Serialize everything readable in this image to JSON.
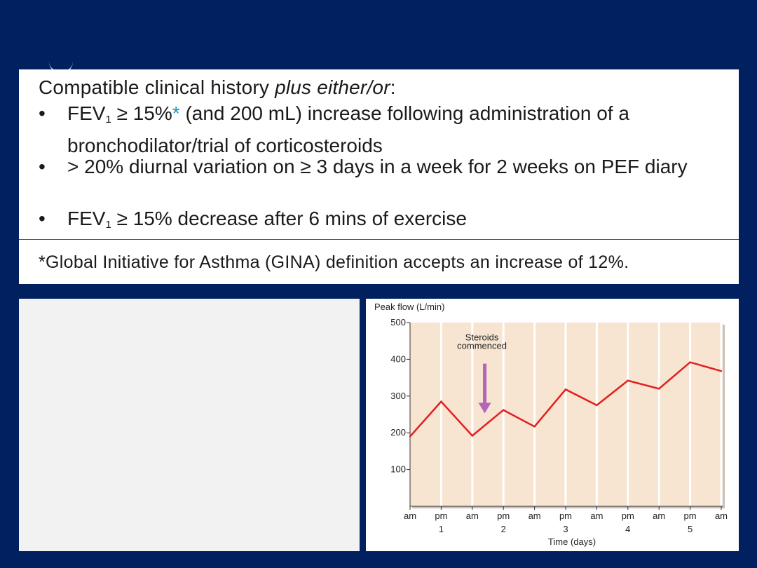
{
  "criteria": {
    "intro_prefix": "Compatible clinical history ",
    "intro_emph": "plus either/or",
    "intro_suffix": ":",
    "bullet_symbol": "•",
    "bullets": [
      {
        "lead": "FEV",
        "sub": "1",
        "text_a": " ≥ 15%",
        "star": "*",
        "text_b": " (and 200 mL) increase following administration of a bronchodilator/trial of corticosteroids"
      },
      {
        "text": "> 20% diurnal variation on ≥ 3 days in a week for 2 weeks on PEF diary"
      },
      {
        "lead": "FEV",
        "sub": "1",
        "text_a": " ≥ 15% decrease after 6 mins of exercise"
      }
    ],
    "footnote": "*Global Initiative for Asthma (GINA) definition accepts an increase of 12%."
  },
  "chart_data": {
    "type": "line",
    "ylabel": "Peak flow (L/min)",
    "xlabel": "Time (days)",
    "ylim": [
      0,
      500
    ],
    "yticks": [
      100,
      200,
      300,
      400,
      500
    ],
    "x_labels": [
      "am",
      "pm",
      "am",
      "pm",
      "am",
      "pm",
      "am",
      "pm",
      "am",
      "pm",
      "am"
    ],
    "day_labels": [
      {
        "at": 1,
        "label": "1"
      },
      {
        "at": 3,
        "label": "2"
      },
      {
        "at": 5,
        "label": "3"
      },
      {
        "at": 7,
        "label": "4"
      },
      {
        "at": 9,
        "label": "5"
      }
    ],
    "series": [
      {
        "name": "Peak flow",
        "color": "#e02020",
        "x": [
          0,
          1,
          2,
          3,
          4,
          5,
          6,
          7,
          8,
          9,
          10
        ],
        "values": [
          190,
          285,
          192,
          262,
          217,
          318,
          275,
          342,
          320,
          392,
          368
        ]
      }
    ],
    "annotation": {
      "text_line1": "Steroids",
      "text_line2": "commenced",
      "at": 2.4,
      "arrow_from": 350,
      "arrow_to": 255,
      "color": "#b565b5"
    },
    "plot_bg": "#f7e4d1",
    "grid_color": "#ffffff"
  }
}
